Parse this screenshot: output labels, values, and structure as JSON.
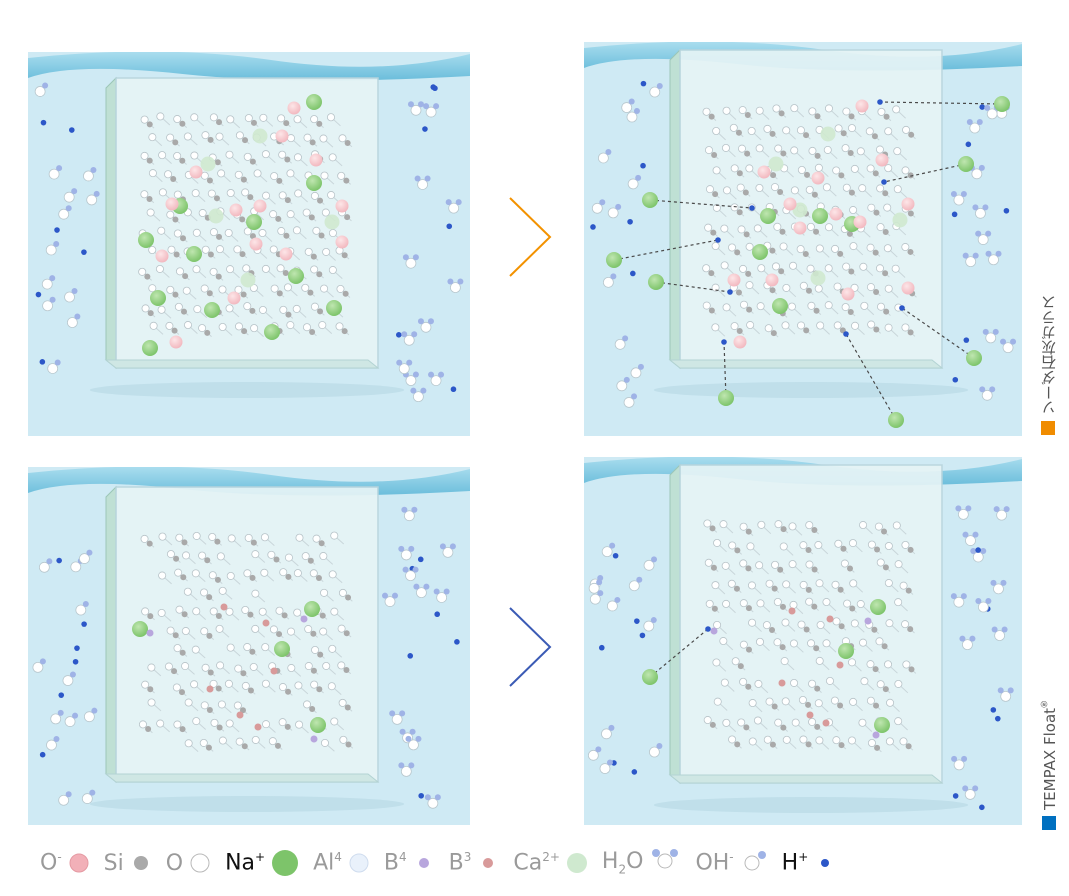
{
  "labels": {
    "soda_lime": "ソーダ石灰ガラス",
    "tempax_name": "TEMPAX Float",
    "tempax_reg": "®"
  },
  "colors": {
    "soda_lime_marker": "#f08c00",
    "tempax_marker": "#0070c0",
    "chevron_top": "#f39200",
    "chevron_bottom": "#3b5bb5",
    "water": "#cfeaf4",
    "wave": "#7ecbe3",
    "na": "#7dc46a",
    "ca": "#cfe9cf",
    "o_minus": "#f2b8bf",
    "si": "#a9a9a9",
    "h_plus": "#2c57c8",
    "b4": "#b8a6dd",
    "b3": "#d89a9a"
  },
  "legend": [
    {
      "id": "o-minus",
      "base": "O",
      "sup": "-",
      "sub": "",
      "icon": "o-minus-icon",
      "strong": false
    },
    {
      "id": "si",
      "base": "Si",
      "sup": "",
      "sub": "",
      "icon": "si-icon",
      "strong": false
    },
    {
      "id": "o",
      "base": "O",
      "sup": "",
      "sub": "",
      "icon": "o-icon",
      "strong": false
    },
    {
      "id": "na",
      "base": "Na",
      "sup": "+",
      "sub": "",
      "icon": "na-icon",
      "strong": true
    },
    {
      "id": "al",
      "base": "Al",
      "sup": "4",
      "sub": "",
      "icon": "al-icon",
      "strong": false
    },
    {
      "id": "b4",
      "base": "B",
      "sup": "4",
      "sub": "",
      "icon": "b4-icon",
      "strong": false
    },
    {
      "id": "b3",
      "base": "B",
      "sup": "3",
      "sub": "",
      "icon": "b3-icon",
      "strong": false
    },
    {
      "id": "ca",
      "base": "Ca",
      "sup": "2+",
      "sub": "",
      "icon": "ca-icon",
      "strong": false
    },
    {
      "id": "h2o",
      "base": "H",
      "sup": "",
      "sub": "2",
      "tail": "O",
      "icon": "h2o-icon",
      "strong": false
    },
    {
      "id": "oh",
      "base": "OH",
      "sup": "-",
      "sub": "",
      "icon": "oh-icon",
      "strong": false
    },
    {
      "id": "h-plus",
      "base": "H",
      "sup": "+",
      "sub": "",
      "icon": "h-plus-icon",
      "strong": true
    }
  ]
}
